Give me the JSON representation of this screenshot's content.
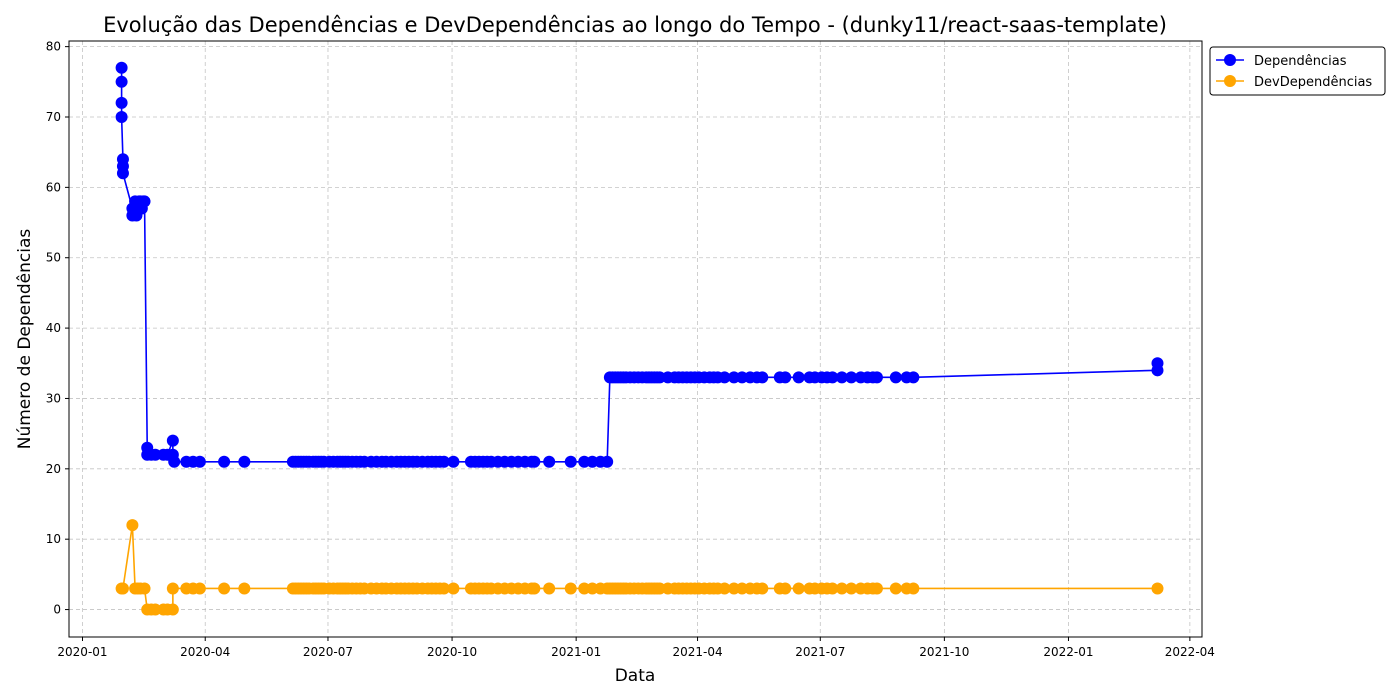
{
  "chart_data": {
    "type": "line",
    "title": "Evolução das Dependências e DevDependências ao longo do Tempo - (dunky11/react-saas-template)",
    "xlabel": "Data",
    "ylabel": "Número de Dependências",
    "x_axis_type": "date",
    "xlim": [
      "2019-12-22",
      "2022-04-10"
    ],
    "ylim": [
      -3.9,
      80.8
    ],
    "x_ticks": [
      "2020-01-01",
      "2020-04-01",
      "2020-07-01",
      "2020-10-01",
      "2021-01-01",
      "2021-04-01",
      "2021-07-01",
      "2021-10-01",
      "2022-01-01",
      "2022-04-01"
    ],
    "x_tick_labels": [
      "2020-01",
      "2020-04",
      "2020-07",
      "2020-10",
      "2021-01",
      "2021-04",
      "2021-07",
      "2021-10",
      "2022-01",
      "2022-04"
    ],
    "y_ticks": [
      0,
      10,
      20,
      30,
      40,
      50,
      60,
      70,
      80
    ],
    "grid": true,
    "legend_position": "upper-right-outside",
    "series": [
      {
        "name": "Dependências",
        "color": "#0000ff",
        "points": [
          [
            "2020-01-30",
            77
          ],
          [
            "2020-01-30",
            75
          ],
          [
            "2020-01-30",
            72
          ],
          [
            "2020-01-30",
            70
          ],
          [
            "2020-01-31",
            64
          ],
          [
            "2020-01-31",
            63
          ],
          [
            "2020-01-31",
            62
          ],
          [
            "2020-02-07",
            57
          ],
          [
            "2020-02-07",
            56
          ],
          [
            "2020-02-08",
            57
          ],
          [
            "2020-02-09",
            58
          ],
          [
            "2020-02-10",
            56
          ],
          [
            "2020-02-11",
            57
          ],
          [
            "2020-02-12",
            58
          ],
          [
            "2020-02-13",
            58
          ],
          [
            "2020-02-14",
            57
          ],
          [
            "2020-02-15",
            58
          ],
          [
            "2020-02-16",
            58
          ],
          [
            "2020-02-18",
            23
          ],
          [
            "2020-02-18",
            22
          ],
          [
            "2020-02-21",
            22
          ],
          [
            "2020-02-24",
            22
          ],
          [
            "2020-03-01",
            22
          ],
          [
            "2020-03-04",
            22
          ],
          [
            "2020-03-08",
            24
          ],
          [
            "2020-03-08",
            22
          ],
          [
            "2020-03-09",
            21
          ],
          [
            "2020-03-18",
            21
          ],
          [
            "2020-03-23",
            21
          ],
          [
            "2020-03-28",
            21
          ],
          [
            "2020-04-15",
            21
          ],
          [
            "2020-04-30",
            21
          ],
          [
            "2020-06-05",
            21
          ],
          [
            "2020-06-07",
            21
          ],
          [
            "2020-06-09",
            21
          ],
          [
            "2020-06-11",
            21
          ],
          [
            "2020-06-13",
            21
          ],
          [
            "2020-06-15",
            21
          ],
          [
            "2020-06-17",
            21
          ],
          [
            "2020-06-20",
            21
          ],
          [
            "2020-06-22",
            21
          ],
          [
            "2020-06-24",
            21
          ],
          [
            "2020-06-26",
            21
          ],
          [
            "2020-06-28",
            21
          ],
          [
            "2020-07-02",
            21
          ],
          [
            "2020-07-05",
            21
          ],
          [
            "2020-07-08",
            21
          ],
          [
            "2020-07-10",
            21
          ],
          [
            "2020-07-12",
            21
          ],
          [
            "2020-07-14",
            21
          ],
          [
            "2020-07-16",
            21
          ],
          [
            "2020-07-19",
            21
          ],
          [
            "2020-07-22",
            21
          ],
          [
            "2020-07-25",
            21
          ],
          [
            "2020-07-28",
            21
          ],
          [
            "2020-08-02",
            21
          ],
          [
            "2020-08-06",
            21
          ],
          [
            "2020-08-10",
            21
          ],
          [
            "2020-08-13",
            21
          ],
          [
            "2020-08-17",
            21
          ],
          [
            "2020-08-21",
            21
          ],
          [
            "2020-08-24",
            21
          ],
          [
            "2020-08-27",
            21
          ],
          [
            "2020-08-30",
            21
          ],
          [
            "2020-09-02",
            21
          ],
          [
            "2020-09-05",
            21
          ],
          [
            "2020-09-09",
            21
          ],
          [
            "2020-09-13",
            21
          ],
          [
            "2020-09-16",
            21
          ],
          [
            "2020-09-19",
            21
          ],
          [
            "2020-09-22",
            21
          ],
          [
            "2020-09-25",
            21
          ],
          [
            "2020-10-02",
            21
          ],
          [
            "2020-10-15",
            21
          ],
          [
            "2020-10-18",
            21
          ],
          [
            "2020-10-21",
            21
          ],
          [
            "2020-10-24",
            21
          ],
          [
            "2020-10-27",
            21
          ],
          [
            "2020-10-30",
            21
          ],
          [
            "2020-11-04",
            21
          ],
          [
            "2020-11-09",
            21
          ],
          [
            "2020-11-14",
            21
          ],
          [
            "2020-11-19",
            21
          ],
          [
            "2020-11-24",
            21
          ],
          [
            "2020-11-29",
            21
          ],
          [
            "2020-12-01",
            21
          ],
          [
            "2020-12-12",
            21
          ],
          [
            "2020-12-28",
            21
          ],
          [
            "2021-01-07",
            21
          ],
          [
            "2021-01-13",
            21
          ],
          [
            "2021-01-19",
            21
          ],
          [
            "2021-01-24",
            21
          ],
          [
            "2021-01-26",
            33
          ],
          [
            "2021-01-28",
            33
          ],
          [
            "2021-01-30",
            33
          ],
          [
            "2021-02-01",
            33
          ],
          [
            "2021-02-03",
            33
          ],
          [
            "2021-02-05",
            33
          ],
          [
            "2021-02-07",
            33
          ],
          [
            "2021-02-10",
            33
          ],
          [
            "2021-02-13",
            33
          ],
          [
            "2021-02-16",
            33
          ],
          [
            "2021-02-19",
            33
          ],
          [
            "2021-02-22",
            33
          ],
          [
            "2021-02-24",
            33
          ],
          [
            "2021-02-26",
            33
          ],
          [
            "2021-02-28",
            33
          ],
          [
            "2021-03-02",
            33
          ],
          [
            "2021-03-04",
            33
          ],
          [
            "2021-03-10",
            33
          ],
          [
            "2021-03-15",
            33
          ],
          [
            "2021-03-18",
            33
          ],
          [
            "2021-03-21",
            33
          ],
          [
            "2021-03-24",
            33
          ],
          [
            "2021-03-27",
            33
          ],
          [
            "2021-03-30",
            33
          ],
          [
            "2021-04-02",
            33
          ],
          [
            "2021-04-06",
            33
          ],
          [
            "2021-04-10",
            33
          ],
          [
            "2021-04-13",
            33
          ],
          [
            "2021-04-16",
            33
          ],
          [
            "2021-04-21",
            33
          ],
          [
            "2021-04-28",
            33
          ],
          [
            "2021-05-04",
            33
          ],
          [
            "2021-05-10",
            33
          ],
          [
            "2021-05-15",
            33
          ],
          [
            "2021-05-19",
            33
          ],
          [
            "2021-06-01",
            33
          ],
          [
            "2021-06-05",
            33
          ],
          [
            "2021-06-15",
            33
          ],
          [
            "2021-06-23",
            33
          ],
          [
            "2021-06-27",
            33
          ],
          [
            "2021-07-02",
            33
          ],
          [
            "2021-07-06",
            33
          ],
          [
            "2021-07-10",
            33
          ],
          [
            "2021-07-17",
            33
          ],
          [
            "2021-07-24",
            33
          ],
          [
            "2021-07-31",
            33
          ],
          [
            "2021-08-05",
            33
          ],
          [
            "2021-08-09",
            33
          ],
          [
            "2021-08-12",
            33
          ],
          [
            "2021-08-26",
            33
          ],
          [
            "2021-09-03",
            33
          ],
          [
            "2021-09-08",
            33
          ],
          [
            "2022-03-08",
            34
          ],
          [
            "2022-03-08",
            35
          ]
        ]
      },
      {
        "name": "DevDependências",
        "color": "#ffa500",
        "points": [
          [
            "2020-01-30",
            3
          ],
          [
            "2020-01-31",
            3
          ],
          [
            "2020-02-07",
            12
          ],
          [
            "2020-02-09",
            3
          ],
          [
            "2020-02-11",
            3
          ],
          [
            "2020-02-13",
            3
          ],
          [
            "2020-02-16",
            3
          ],
          [
            "2020-02-18",
            0
          ],
          [
            "2020-02-21",
            0
          ],
          [
            "2020-02-24",
            0
          ],
          [
            "2020-03-01",
            0
          ],
          [
            "2020-03-04",
            0
          ],
          [
            "2020-03-08",
            0
          ],
          [
            "2020-03-08",
            3
          ],
          [
            "2020-03-18",
            3
          ],
          [
            "2020-03-23",
            3
          ],
          [
            "2020-03-28",
            3
          ],
          [
            "2020-04-15",
            3
          ],
          [
            "2020-04-30",
            3
          ],
          [
            "2020-06-05",
            3
          ],
          [
            "2020-06-07",
            3
          ],
          [
            "2020-06-09",
            3
          ],
          [
            "2020-06-11",
            3
          ],
          [
            "2020-06-13",
            3
          ],
          [
            "2020-06-15",
            3
          ],
          [
            "2020-06-17",
            3
          ],
          [
            "2020-06-20",
            3
          ],
          [
            "2020-06-22",
            3
          ],
          [
            "2020-06-24",
            3
          ],
          [
            "2020-06-26",
            3
          ],
          [
            "2020-06-28",
            3
          ],
          [
            "2020-07-02",
            3
          ],
          [
            "2020-07-05",
            3
          ],
          [
            "2020-07-08",
            3
          ],
          [
            "2020-07-10",
            3
          ],
          [
            "2020-07-12",
            3
          ],
          [
            "2020-07-14",
            3
          ],
          [
            "2020-07-16",
            3
          ],
          [
            "2020-07-19",
            3
          ],
          [
            "2020-07-22",
            3
          ],
          [
            "2020-07-25",
            3
          ],
          [
            "2020-07-28",
            3
          ],
          [
            "2020-08-02",
            3
          ],
          [
            "2020-08-06",
            3
          ],
          [
            "2020-08-10",
            3
          ],
          [
            "2020-08-13",
            3
          ],
          [
            "2020-08-17",
            3
          ],
          [
            "2020-08-21",
            3
          ],
          [
            "2020-08-24",
            3
          ],
          [
            "2020-08-27",
            3
          ],
          [
            "2020-08-30",
            3
          ],
          [
            "2020-09-02",
            3
          ],
          [
            "2020-09-05",
            3
          ],
          [
            "2020-09-09",
            3
          ],
          [
            "2020-09-13",
            3
          ],
          [
            "2020-09-16",
            3
          ],
          [
            "2020-09-19",
            3
          ],
          [
            "2020-09-22",
            3
          ],
          [
            "2020-09-25",
            3
          ],
          [
            "2020-10-02",
            3
          ],
          [
            "2020-10-15",
            3
          ],
          [
            "2020-10-18",
            3
          ],
          [
            "2020-10-21",
            3
          ],
          [
            "2020-10-24",
            3
          ],
          [
            "2020-10-27",
            3
          ],
          [
            "2020-10-30",
            3
          ],
          [
            "2020-11-04",
            3
          ],
          [
            "2020-11-09",
            3
          ],
          [
            "2020-11-14",
            3
          ],
          [
            "2020-11-19",
            3
          ],
          [
            "2020-11-24",
            3
          ],
          [
            "2020-11-29",
            3
          ],
          [
            "2020-12-01",
            3
          ],
          [
            "2020-12-12",
            3
          ],
          [
            "2020-12-28",
            3
          ],
          [
            "2021-01-07",
            3
          ],
          [
            "2021-01-13",
            3
          ],
          [
            "2021-01-19",
            3
          ],
          [
            "2021-01-24",
            3
          ],
          [
            "2021-01-26",
            3
          ],
          [
            "2021-01-28",
            3
          ],
          [
            "2021-01-30",
            3
          ],
          [
            "2021-02-01",
            3
          ],
          [
            "2021-02-03",
            3
          ],
          [
            "2021-02-05",
            3
          ],
          [
            "2021-02-07",
            3
          ],
          [
            "2021-02-10",
            3
          ],
          [
            "2021-02-13",
            3
          ],
          [
            "2021-02-16",
            3
          ],
          [
            "2021-02-19",
            3
          ],
          [
            "2021-02-22",
            3
          ],
          [
            "2021-02-24",
            3
          ],
          [
            "2021-02-26",
            3
          ],
          [
            "2021-02-28",
            3
          ],
          [
            "2021-03-02",
            3
          ],
          [
            "2021-03-04",
            3
          ],
          [
            "2021-03-10",
            3
          ],
          [
            "2021-03-15",
            3
          ],
          [
            "2021-03-18",
            3
          ],
          [
            "2021-03-21",
            3
          ],
          [
            "2021-03-24",
            3
          ],
          [
            "2021-03-27",
            3
          ],
          [
            "2021-03-30",
            3
          ],
          [
            "2021-04-02",
            3
          ],
          [
            "2021-04-06",
            3
          ],
          [
            "2021-04-10",
            3
          ],
          [
            "2021-04-13",
            3
          ],
          [
            "2021-04-16",
            3
          ],
          [
            "2021-04-21",
            3
          ],
          [
            "2021-04-28",
            3
          ],
          [
            "2021-05-04",
            3
          ],
          [
            "2021-05-10",
            3
          ],
          [
            "2021-05-15",
            3
          ],
          [
            "2021-05-19",
            3
          ],
          [
            "2021-06-01",
            3
          ],
          [
            "2021-06-05",
            3
          ],
          [
            "2021-06-15",
            3
          ],
          [
            "2021-06-23",
            3
          ],
          [
            "2021-06-27",
            3
          ],
          [
            "2021-07-02",
            3
          ],
          [
            "2021-07-06",
            3
          ],
          [
            "2021-07-10",
            3
          ],
          [
            "2021-07-17",
            3
          ],
          [
            "2021-07-24",
            3
          ],
          [
            "2021-07-31",
            3
          ],
          [
            "2021-08-05",
            3
          ],
          [
            "2021-08-09",
            3
          ],
          [
            "2021-08-12",
            3
          ],
          [
            "2021-08-26",
            3
          ],
          [
            "2021-09-03",
            3
          ],
          [
            "2021-09-08",
            3
          ],
          [
            "2022-03-08",
            3
          ]
        ]
      }
    ]
  }
}
